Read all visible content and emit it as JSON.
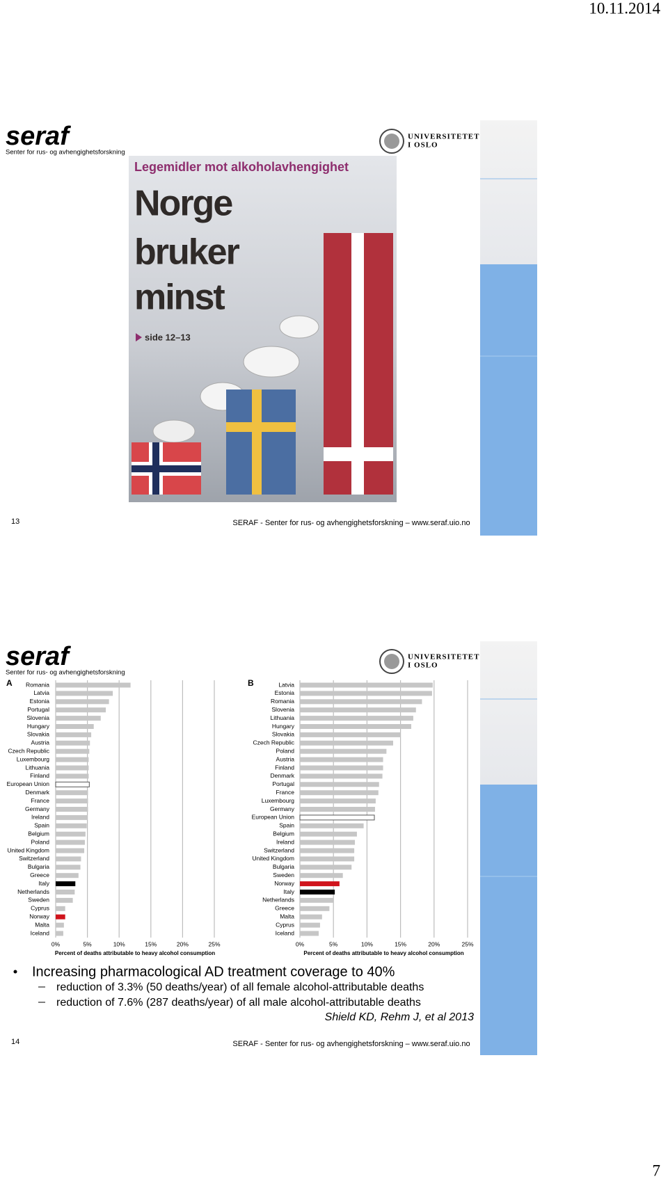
{
  "date": "10.11.2014",
  "page_number": "7",
  "slides": [
    {
      "logo": "seraf",
      "logo_subtitle": "Senter for rus- og avhengighetsforskning",
      "university": [
        "UNIVERSITETET",
        "I OSLO"
      ],
      "newspaper": {
        "kicker": "Legemidler mot alkoholavhengighet",
        "headline": [
          "Norge",
          "bruker",
          "minst"
        ],
        "pages": "side 12–13"
      },
      "slide_number": "13",
      "footer": "SERAF - Senter for rus- og avhengighetsforskning – www.seraf.uio.no"
    },
    {
      "logo": "seraf",
      "logo_subtitle": "Senter for rus- og avhengighetsforskning",
      "university": [
        "UNIVERSITETET",
        "I OSLO"
      ],
      "bullet": "Increasing pharmacological AD treatment coverage to 40%",
      "sub_bullets": [
        "reduction of 3.3% (50 deaths/year) of all female alcohol-attributable deaths",
        "reduction of 7.6% (287 deaths/year) of all male alcohol-attributable deaths"
      ],
      "citation": "Shield KD, Rehm J, et al 2013",
      "slide_number": "14",
      "footer": "SERAF - Senter for rus- og avhengighetsforskning – www.seraf.uio.no"
    }
  ],
  "chart_data": [
    {
      "type": "bar",
      "orientation": "horizontal",
      "panel": "A",
      "x_label": "Percent of deaths attributable to heavy alcohol consumption",
      "categories": [
        "Romania",
        "Latvia",
        "Estonia",
        "Portugal",
        "Slovenia",
        "Hungary",
        "Slovakia",
        "Austria",
        "Czech Republic",
        "Luxembourg",
        "Lithuania",
        "Finland",
        "European Union",
        "Denmark",
        "France",
        "Germany",
        "Ireland",
        "Spain",
        "Belgium",
        "Poland",
        "United Kingdom",
        "Switzerland",
        "Bulgaria",
        "Greece",
        "Italy",
        "Netherlands",
        "Sweden",
        "Cyprus",
        "Norway",
        "Malta",
        "Iceland"
      ],
      "values": [
        11.8,
        9.0,
        8.4,
        7.9,
        7.1,
        6.0,
        5.6,
        5.4,
        5.3,
        5.2,
        5.2,
        5.2,
        5.3,
        5.1,
        5.1,
        5.1,
        5.0,
        4.9,
        4.7,
        4.6,
        4.5,
        4.0,
        3.9,
        3.6,
        3.1,
        3.0,
        2.7,
        1.5,
        1.5,
        1.3,
        1.2
      ],
      "colors": [
        "#c6c6c6",
        "#c6c6c6",
        "#c6c6c6",
        "#c6c6c6",
        "#c6c6c6",
        "#c6c6c6",
        "#c6c6c6",
        "#c6c6c6",
        "#c6c6c6",
        "#c6c6c6",
        "#c6c6c6",
        "#c6c6c6",
        "#ffffff",
        "#c6c6c6",
        "#c6c6c6",
        "#c6c6c6",
        "#c6c6c6",
        "#c6c6c6",
        "#c6c6c6",
        "#c6c6c6",
        "#c6c6c6",
        "#c6c6c6",
        "#c6c6c6",
        "#c6c6c6",
        "#000000",
        "#c6c6c6",
        "#c6c6c6",
        "#c6c6c6",
        "#d0141c",
        "#c6c6c6",
        "#c6c6c6"
      ],
      "xlim": [
        0,
        25
      ],
      "xticks": [
        {
          "value": 0,
          "label": "0%"
        },
        {
          "value": 5,
          "label": "5%"
        },
        {
          "value": 10,
          "label": "10%"
        },
        {
          "value": 15,
          "label": "15%"
        },
        {
          "value": 20,
          "label": "20%"
        },
        {
          "value": 25,
          "label": "25%"
        }
      ],
      "grid": true
    },
    {
      "type": "bar",
      "orientation": "horizontal",
      "panel": "B",
      "x_label": "Percent of deaths attributable to heavy alcohol consumption",
      "categories": [
        "Latvia",
        "Estonia",
        "Romania",
        "Slovenia",
        "Lithuania",
        "Hungary",
        "Slovakia",
        "Czech Republic",
        "Poland",
        "Austria",
        "Finland",
        "Denmark",
        "Portugal",
        "France",
        "Luxembourg",
        "Germany",
        "European Union",
        "Spain",
        "Belgium",
        "Ireland",
        "Switzerland",
        "United Kingdom",
        "Bulgaria",
        "Sweden",
        "Norway",
        "Italy",
        "Netherlands",
        "Greece",
        "Malta",
        "Cyprus",
        "Iceland"
      ],
      "values": [
        19.8,
        19.7,
        18.2,
        17.3,
        16.9,
        16.6,
        15.0,
        13.9,
        12.9,
        12.4,
        12.4,
        12.3,
        11.8,
        11.7,
        11.3,
        11.2,
        11.1,
        9.5,
        8.5,
        8.2,
        8.1,
        8.1,
        7.7,
        6.4,
        5.9,
        5.2,
        5.0,
        4.4,
        3.3,
        3.0,
        2.8
      ],
      "colors": [
        "#c6c6c6",
        "#c6c6c6",
        "#c6c6c6",
        "#c6c6c6",
        "#c6c6c6",
        "#c6c6c6",
        "#c6c6c6",
        "#c6c6c6",
        "#c6c6c6",
        "#c6c6c6",
        "#c6c6c6",
        "#c6c6c6",
        "#c6c6c6",
        "#c6c6c6",
        "#c6c6c6",
        "#c6c6c6",
        "#ffffff",
        "#c6c6c6",
        "#c6c6c6",
        "#c6c6c6",
        "#c6c6c6",
        "#c6c6c6",
        "#c6c6c6",
        "#c6c6c6",
        "#d0141c",
        "#000000",
        "#c6c6c6",
        "#c6c6c6",
        "#c6c6c6",
        "#c6c6c6",
        "#c6c6c6"
      ],
      "xlim": [
        0,
        25
      ],
      "xticks": [
        {
          "value": 0,
          "label": "0%"
        },
        {
          "value": 5,
          "label": "5%"
        },
        {
          "value": 10,
          "label": "10%"
        },
        {
          "value": 15,
          "label": "15%"
        },
        {
          "value": 20,
          "label": "20%"
        },
        {
          "value": 25,
          "label": "25%"
        }
      ],
      "grid": true
    }
  ]
}
